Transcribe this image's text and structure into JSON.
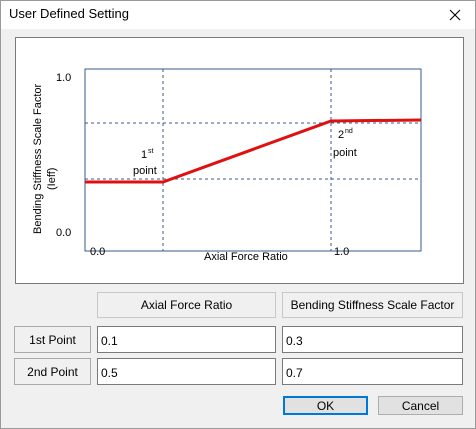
{
  "window": {
    "title": "User Defined Setting"
  },
  "graph": {
    "y_axis_label_line1": "Bending Stiffness Scale Factor",
    "y_axis_label_line2": "(Ieff)",
    "y_tick_top": "1.0",
    "y_tick_bottom": "0.0",
    "x_tick_left": "0.0",
    "x_tick_right": "1.0",
    "x_axis_label": "Axial Force Ratio",
    "point1_num": "1",
    "point1_sup": "st",
    "point1_word": "point",
    "point2_num": "2",
    "point2_sup": "nd",
    "point2_word": "point",
    "line_color": "#e01010",
    "frame_color": "#3a5a8a"
  },
  "table": {
    "col1_header": "Axial Force Ratio",
    "col2_header": "Bending Stiffness Scale Factor",
    "row1_label": "1st Point",
    "row2_label": "2nd Point",
    "row1_axial": "0.1",
    "row1_bending": "0.3",
    "row2_axial": "0.5",
    "row2_bending": "0.7"
  },
  "buttons": {
    "ok": "OK",
    "cancel": "Cancel"
  }
}
